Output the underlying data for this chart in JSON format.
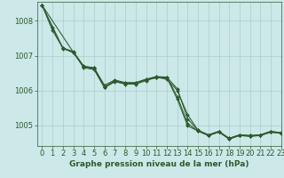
{
  "background_color": "#cce8e8",
  "line_color": "#2d5a2d",
  "grid_color": "#aacece",
  "title": "Graphe pression niveau de la mer (hPa)",
  "title_fontsize": 6.5,
  "tick_fontsize": 6,
  "xlim": [
    -0.5,
    23
  ],
  "ylim": [
    1004.4,
    1008.55
  ],
  "yticks": [
    1005,
    1006,
    1007,
    1008
  ],
  "xticks": [
    0,
    1,
    2,
    3,
    4,
    5,
    6,
    7,
    8,
    9,
    10,
    11,
    12,
    13,
    14,
    15,
    16,
    17,
    18,
    19,
    20,
    21,
    22,
    23
  ],
  "series": [
    {
      "x": [
        0,
        1,
        2,
        3,
        4,
        5,
        6,
        7,
        8,
        9,
        10,
        11,
        12,
        13,
        14,
        15,
        16,
        17,
        18,
        19,
        20,
        21,
        22,
        23
      ],
      "y": [
        1008.45,
        1007.8,
        1007.2,
        1007.1,
        1006.68,
        1006.65,
        1006.1,
        1006.28,
        1006.22,
        1006.22,
        1006.32,
        1006.38,
        1006.32,
        1006.0,
        1005.3,
        1004.85,
        1004.72,
        1004.82,
        1004.62,
        1004.72,
        1004.7,
        1004.72,
        1004.82,
        1004.78
      ]
    },
    {
      "x": [
        0,
        1,
        2,
        3,
        4,
        5,
        6,
        7,
        8,
        9,
        10,
        11,
        12,
        13,
        14,
        15,
        16,
        17,
        18,
        19,
        20,
        21,
        22,
        23
      ],
      "y": [
        1008.45,
        1007.72,
        1007.22,
        1007.12,
        1006.7,
        1006.65,
        1006.15,
        1006.3,
        1006.22,
        1006.22,
        1006.32,
        1006.4,
        1006.38,
        1006.05,
        1005.18,
        1004.85,
        1004.72,
        1004.82,
        1004.62,
        1004.72,
        1004.7,
        1004.72,
        1004.82,
        1004.78
      ]
    },
    {
      "x": [
        0,
        2,
        3,
        4,
        5,
        6,
        7,
        8,
        9,
        10,
        11,
        12,
        13,
        14,
        15,
        16,
        17,
        18,
        19,
        20,
        21,
        22,
        23
      ],
      "y": [
        1008.45,
        1007.22,
        1007.08,
        1006.68,
        1006.62,
        1006.08,
        1006.26,
        1006.2,
        1006.2,
        1006.3,
        1006.36,
        1006.36,
        1005.75,
        1004.98,
        1004.83,
        1004.7,
        1004.8,
        1004.6,
        1004.7,
        1004.68,
        1004.7,
        1004.8,
        1004.76
      ]
    },
    {
      "x": [
        0,
        3,
        4,
        5,
        6,
        7,
        8,
        9,
        10,
        11,
        12,
        13,
        14,
        15,
        16,
        17,
        18,
        19,
        20,
        21,
        22,
        23
      ],
      "y": [
        1008.45,
        1007.1,
        1006.65,
        1006.6,
        1006.08,
        1006.25,
        1006.18,
        1006.18,
        1006.28,
        1006.38,
        1006.38,
        1005.82,
        1005.05,
        1004.83,
        1004.7,
        1004.8,
        1004.6,
        1004.7,
        1004.68,
        1004.7,
        1004.8,
        1004.76
      ]
    }
  ],
  "marker": "D",
  "markersize": 2.0,
  "linewidth": 0.75
}
